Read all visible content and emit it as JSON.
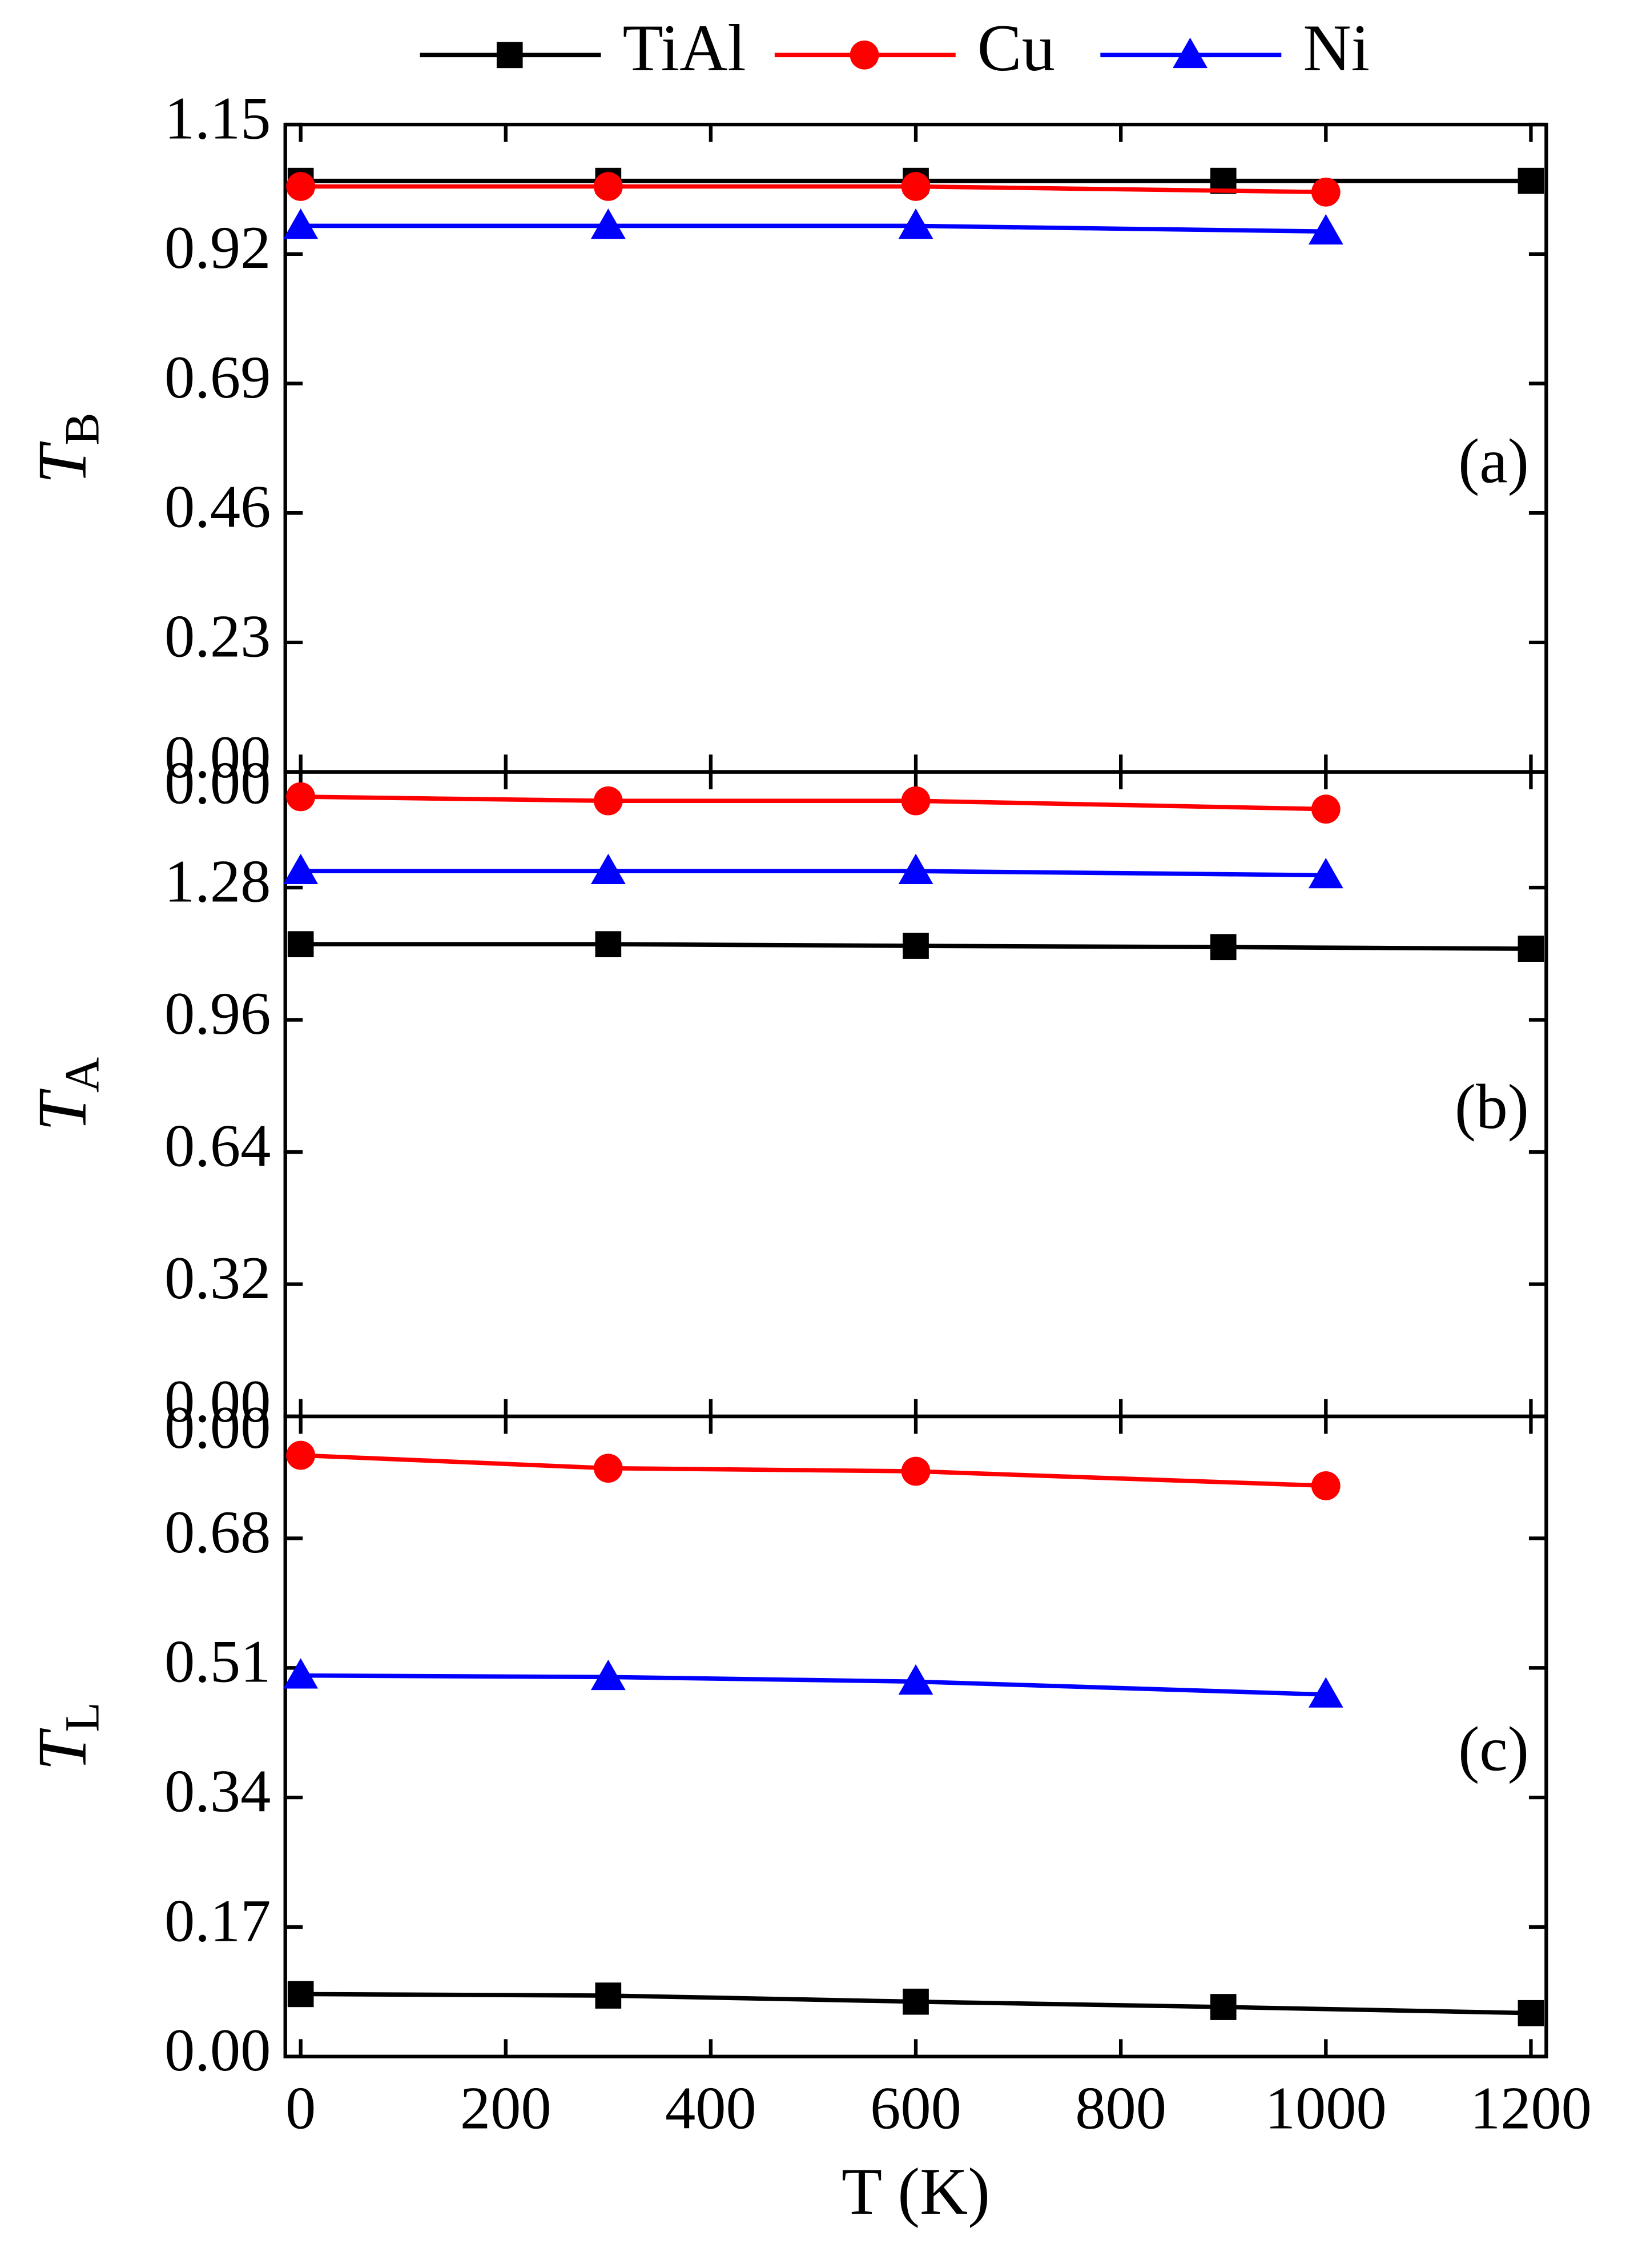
{
  "chart_data": [
    {
      "type": "line",
      "ylabel": "T",
      "ylabel_subscript": "B",
      "panel_label": "(a)",
      "legend": "top",
      "xlim": [
        -15,
        1215
      ],
      "ylim": [
        0,
        1.15
      ],
      "yticks": [
        {
          "value": 0,
          "label": "0.00"
        },
        0.23,
        0.46,
        0.69,
        0.92,
        1.15
      ],
      "series": [
        {
          "name": "TiAl",
          "color": "#000000",
          "marker": "square",
          "x": [
            0,
            300,
            600,
            900,
            1200
          ],
          "values": [
            1.05,
            1.05,
            1.05,
            1.05,
            1.05
          ]
        },
        {
          "name": "Cu",
          "color": "#ff0000",
          "marker": "circle",
          "x": [
            0,
            300,
            600,
            1000
          ],
          "values": [
            1.04,
            1.04,
            1.04,
            1.03
          ]
        },
        {
          "name": "Ni",
          "color": "#0000ff",
          "marker": "triangle",
          "x": [
            0,
            300,
            600,
            1000
          ],
          "values": [
            0.97,
            0.97,
            0.97,
            0.96
          ]
        }
      ]
    },
    {
      "type": "line",
      "ylabel": "T",
      "ylabel_subscript": "A",
      "panel_label": "(b)",
      "top_label": "0.00",
      "xlim": [
        -15,
        1215
      ],
      "ylim": [
        0,
        1.56
      ],
      "yticks": [
        {
          "value": 0,
          "label": "0.00"
        },
        0.32,
        0.64,
        0.96,
        1.28
      ],
      "series": [
        {
          "color": "#000000",
          "marker": "square",
          "x": [
            0,
            300,
            600,
            900,
            1200
          ],
          "values": [
            1.143,
            1.143,
            1.139,
            1.136,
            1.132
          ]
        },
        {
          "color": "#ff0000",
          "marker": "circle",
          "x": [
            0,
            300,
            600,
            1000
          ],
          "values": [
            1.5,
            1.49,
            1.49,
            1.47
          ]
        },
        {
          "color": "#0000ff",
          "marker": "triangle",
          "x": [
            0,
            300,
            600,
            1000
          ],
          "values": [
            1.32,
            1.32,
            1.32,
            1.31
          ]
        }
      ]
    },
    {
      "type": "line",
      "ylabel": "T",
      "ylabel_subscript": "L",
      "panel_label": "(c)",
      "top_label": "0.00",
      "xlabel": "T (K)",
      "xlim": [
        -15,
        1215
      ],
      "ylim": [
        0,
        0.84
      ],
      "xticks": [
        0,
        200,
        400,
        600,
        800,
        1000,
        1200
      ],
      "yticks": [
        {
          "value": 0,
          "label": "0.00"
        },
        0.17,
        0.34,
        0.51,
        0.68
      ],
      "series": [
        {
          "color": "#000000",
          "marker": "square",
          "x": [
            0,
            300,
            600,
            900,
            1200
          ],
          "values": [
            0.082,
            0.08,
            0.072,
            0.065,
            0.057
          ]
        },
        {
          "color": "#ff0000",
          "marker": "circle",
          "x": [
            0,
            300,
            600,
            1000
          ],
          "values": [
            0.789,
            0.772,
            0.768,
            0.749
          ]
        },
        {
          "color": "#0000ff",
          "marker": "triangle",
          "x": [
            0,
            300,
            600,
            1000
          ],
          "values": [
            0.5,
            0.498,
            0.492,
            0.475
          ]
        }
      ]
    }
  ]
}
